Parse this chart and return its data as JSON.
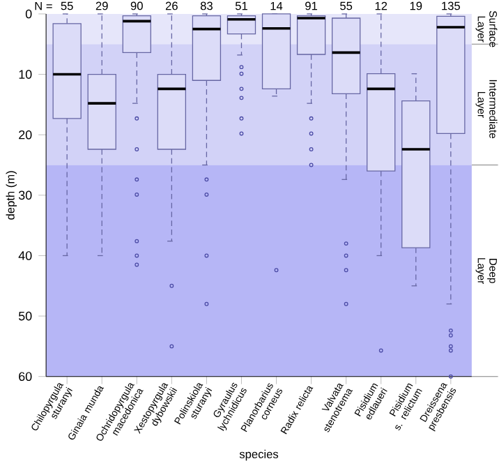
{
  "chart_data": {
    "type": "box",
    "xlabel": "species",
    "ylabel": "depth (m)",
    "ylim": [
      60,
      0
    ],
    "yticks": [
      0,
      10,
      20,
      30,
      40,
      50,
      60
    ],
    "color": "#dcdcf8",
    "marker": "circle",
    "categories": [
      "Chilopyrgula sturanyi",
      "Ginaia munda",
      "Ochridopyrgula macedonica",
      "Xestopyrgula dybowskii",
      "Polinskiola sturanyi",
      "Gyraulus lychnidicus",
      "Planorbarius corneus",
      "Radix relicta",
      "Valvata stenotrema",
      "Pisidium edlaueri",
      "Pisidium s. relictum",
      "Dreissena presbensis"
    ],
    "boxes": [
      {
        "low": 0,
        "q1": 1.6,
        "median": 10,
        "q3": 17.3,
        "high": 40
      },
      {
        "low": 0,
        "q1": 10,
        "median": 14.8,
        "q3": 22.4,
        "high": 40
      },
      {
        "low": 0,
        "q1": 0.3,
        "median": 1.2,
        "q3": 6.4,
        "high": 14.8,
        "outliers": [
          17.3,
          22.4,
          27.4,
          29.9,
          37.6,
          40,
          41.5
        ]
      },
      {
        "low": 0,
        "q1": 10,
        "median": 12.4,
        "q3": 22.4,
        "high": 37.6,
        "outliers": [
          45,
          55
        ]
      },
      {
        "low": 0,
        "q1": 0.3,
        "median": 2.5,
        "q3": 11,
        "high": 25,
        "outliers": [
          27.4,
          29.9,
          40,
          48
        ]
      },
      {
        "low": 0,
        "q1": 0.3,
        "median": 0.9,
        "q3": 3.3,
        "high": 6.8,
        "outliers": [
          8.8,
          9.9,
          12.4,
          13.9,
          17.3,
          19.8
        ]
      },
      {
        "low": 0,
        "q1": 0,
        "median": 2.4,
        "q3": 12.4,
        "high": 13.6,
        "outliers": [
          42.4
        ]
      },
      {
        "low": 0,
        "q1": 0.3,
        "median": 0.7,
        "q3": 6.7,
        "high": 14.8,
        "outliers": [
          17.3,
          19.8,
          22.4,
          25
        ]
      },
      {
        "low": 0,
        "q1": 0.7,
        "median": 6.4,
        "q3": 13.2,
        "high": 27.4,
        "outliers": [
          38,
          40,
          42.4,
          48
        ]
      },
      {
        "low": 0,
        "q1": 9.9,
        "median": 12.4,
        "q3": 26,
        "high": 40,
        "outliers": [
          55.7
        ]
      },
      {
        "low": 9.9,
        "q1": 14.4,
        "median": 22.4,
        "q3": 38.7,
        "high": 45
      },
      {
        "low": 0,
        "q1": 0.4,
        "median": 2.2,
        "q3": 19.8,
        "high": 48,
        "outliers": [
          52.4,
          53.2,
          55,
          55.7,
          60
        ]
      }
    ],
    "bands": [
      {
        "axis": "y",
        "from": 0,
        "to": 5,
        "label": "Surface Layer",
        "color": "#e6e6fa"
      },
      {
        "axis": "y",
        "from": 5,
        "to": 25,
        "label": "Intermediate Layer",
        "color": "#d2d2f7"
      },
      {
        "axis": "y",
        "from": 25,
        "to": 60,
        "label": "Deep Layer",
        "color": "#b6b6f6"
      }
    ],
    "annotations": [
      "N =",
      "55",
      "29",
      "90",
      "26",
      "83",
      "51",
      "14",
      "91",
      "55",
      "12",
      "19",
      "135"
    ]
  }
}
